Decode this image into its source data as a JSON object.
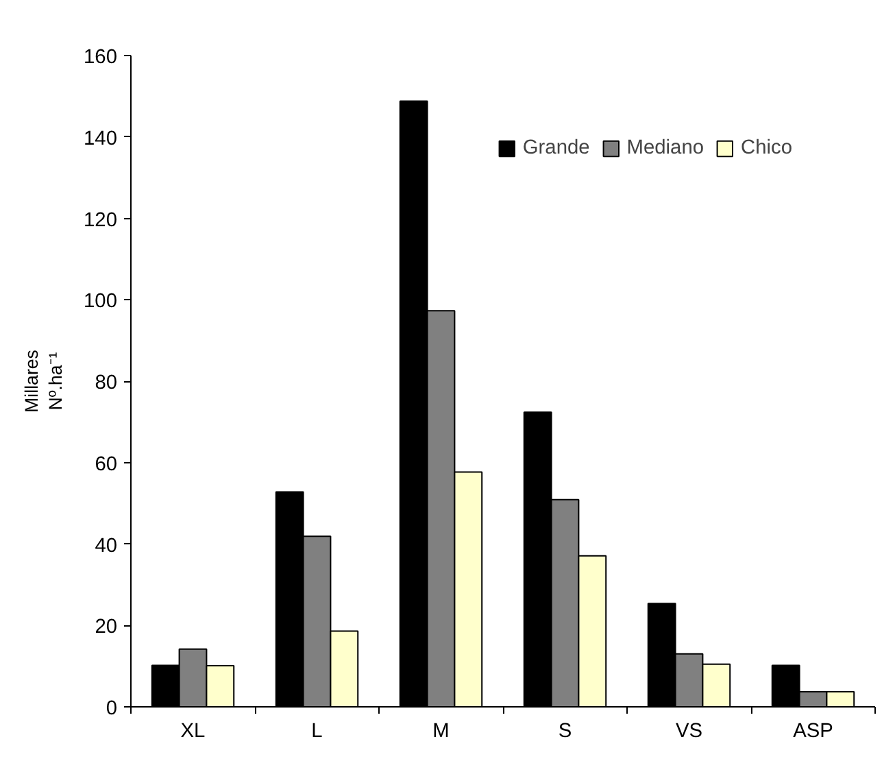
{
  "chart_data": {
    "type": "bar",
    "ylabel": "Nº.ha⁻¹",
    "annotations": [
      "Millares"
    ],
    "categories": [
      "XL",
      "L",
      "M",
      "S",
      "VS",
      "ASP"
    ],
    "series": [
      {
        "name": "Grande",
        "color": "#000000",
        "values": [
          10.2,
          52.8,
          148.8,
          72.4,
          25.4,
          10.2
        ]
      },
      {
        "name": "Mediano",
        "color": "#808080",
        "values": [
          14.2,
          41.9,
          97.3,
          50.9,
          13.0,
          3.7
        ]
      },
      {
        "name": "Chico",
        "color": "#ffffcc",
        "values": [
          10.1,
          18.6,
          57.7,
          37.1,
          10.5,
          3.7
        ]
      }
    ],
    "ylim": [
      0,
      160
    ],
    "yticks": [
      0,
      20,
      40,
      60,
      80,
      100,
      120,
      140,
      160
    ],
    "grid": false,
    "legend": "top right"
  }
}
